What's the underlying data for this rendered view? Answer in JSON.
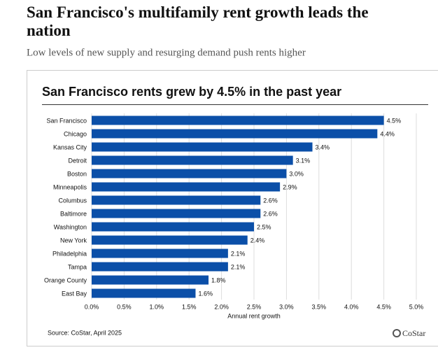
{
  "headline": "San Francisco's multifamily rent growth leads the nation",
  "subheadline": "Low levels of new supply and resurging demand push rents higher",
  "chart_data": {
    "type": "bar",
    "orientation": "horizontal",
    "title": "San Francisco rents grew by 4.5% in the past year",
    "categories": [
      "San Francisco",
      "Chicago",
      "Kansas City",
      "Detroit",
      "Boston",
      "Minneapolis",
      "Columbus",
      "Baltimore",
      "Washington",
      "New York",
      "Philadelphia",
      "Tampa",
      "Orange County",
      "East Bay"
    ],
    "values": [
      4.5,
      4.4,
      3.4,
      3.1,
      3.0,
      2.9,
      2.6,
      2.6,
      2.5,
      2.4,
      2.1,
      2.1,
      1.8,
      1.6
    ],
    "value_labels": [
      "4.5%",
      "4.4%",
      "3.4%",
      "3.1%",
      "3.0%",
      "2.9%",
      "2.6%",
      "2.6%",
      "2.5%",
      "2.4%",
      "2.1%",
      "2.1%",
      "1.8%",
      "1.6%"
    ],
    "color": "#0b4fa8",
    "xlim": [
      0,
      5
    ],
    "xticks": [
      {
        "value": 0,
        "label": "0.0%"
      },
      {
        "value": 0.5,
        "label": "0.5%"
      },
      {
        "value": 1,
        "label": "1.0%"
      },
      {
        "value": 1.5,
        "label": "1.5%"
      },
      {
        "value": 2,
        "label": "2.0%"
      },
      {
        "value": 2.5,
        "label": "2.5%"
      },
      {
        "value": 3,
        "label": "3.0%"
      },
      {
        "value": 3.5,
        "label": "3.5%"
      },
      {
        "value": 4,
        "label": "4.0%"
      },
      {
        "value": 4.5,
        "label": "4.5%"
      },
      {
        "value": 5,
        "label": "5.0%"
      }
    ],
    "xlabel": "Annual rent growth",
    "grid": true,
    "source": "Source: CoStar, April 2025",
    "logo": "CoStar"
  }
}
